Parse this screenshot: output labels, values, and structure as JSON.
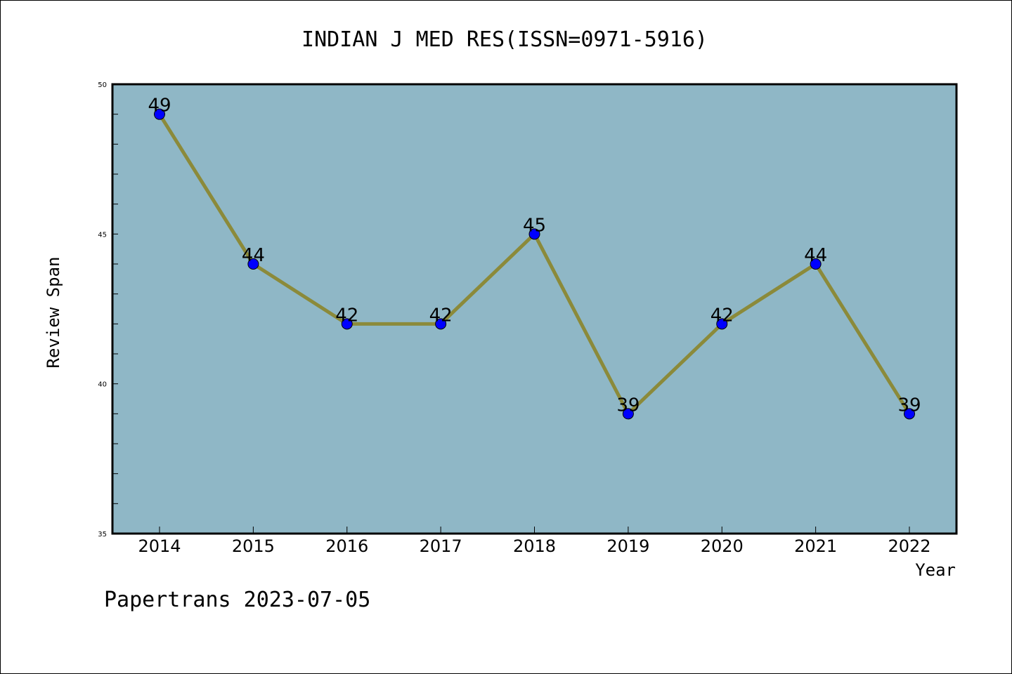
{
  "chart_data": {
    "type": "line",
    "title": "INDIAN J MED RES(ISSN=0971-5916)",
    "xlabel": "Year",
    "ylabel": "Review Span",
    "categories": [
      "2014",
      "2015",
      "2016",
      "2017",
      "2018",
      "2019",
      "2020",
      "2021",
      "2022"
    ],
    "series": [
      {
        "values": [
          49,
          44,
          42,
          42,
          45,
          39,
          42,
          44,
          39
        ]
      }
    ],
    "data_labels": [
      "49",
      "44",
      "42",
      "42",
      "45",
      "39",
      "42",
      "44",
      "39"
    ],
    "ylim": [
      35,
      50
    ],
    "y_ticks": [
      "35",
      "40",
      "45",
      "50"
    ],
    "grid": false,
    "colors": {
      "plot_background": "#8fb7c6",
      "line": "#8b8a3a",
      "marker": "#0000ff"
    }
  },
  "footer": {
    "watermark": "Papertrans 2023-07-05"
  }
}
